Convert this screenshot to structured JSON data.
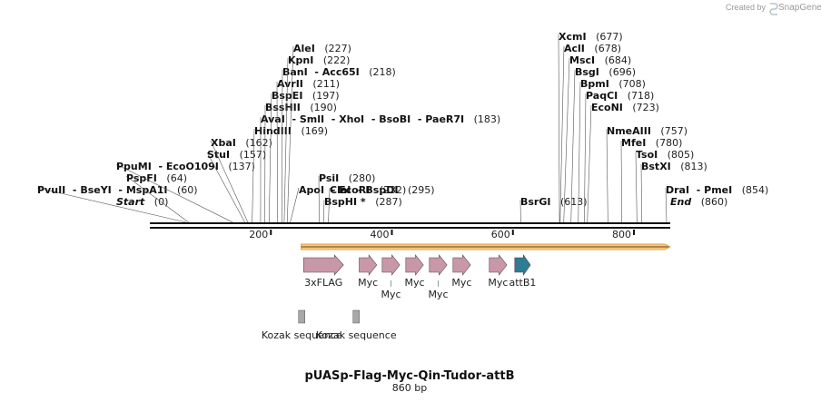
{
  "credit": {
    "prefix": "Created by",
    "brand": "SnapGene",
    "icon": "snapgene-logo-icon"
  },
  "plasmid": {
    "name": "pUASp-Flag-Myc-Qin-Tudor-attB",
    "length_text": "860 bp",
    "length": 860
  },
  "ruler": {
    "ticks": [
      200,
      400,
      600,
      800
    ]
  },
  "sites": [
    {
      "bp": 0,
      "labels": [
        {
          "text": "Start",
          "italic": true
        }
      ],
      "pos": "(0)"
    },
    {
      "bp": 60,
      "labels": [
        {
          "text": "PvuII"
        },
        {
          "text": "BseYI"
        },
        {
          "text": "MspA1I"
        }
      ],
      "pos": "(60)"
    },
    {
      "bp": 64,
      "labels": [
        {
          "text": "PspFI"
        }
      ],
      "pos": "(64)"
    },
    {
      "bp": 137,
      "labels": [
        {
          "text": "PpuMI"
        },
        {
          "text": "EcoO109I"
        }
      ],
      "pos": "(137)"
    },
    {
      "bp": 157,
      "labels": [
        {
          "text": "StuI"
        }
      ],
      "pos": "(157)"
    },
    {
      "bp": 162,
      "labels": [
        {
          "text": "XbaI"
        }
      ],
      "pos": "(162)"
    },
    {
      "bp": 169,
      "labels": [
        {
          "text": "HindIII"
        }
      ],
      "pos": "(169)"
    },
    {
      "bp": 183,
      "labels": [
        {
          "text": "AvaI"
        },
        {
          "text": "SmlI"
        },
        {
          "text": "XhoI"
        },
        {
          "text": "BsoBI"
        },
        {
          "text": "PaeR7I"
        }
      ],
      "pos": "(183)"
    },
    {
      "bp": 190,
      "labels": [
        {
          "text": "BssHII"
        }
      ],
      "pos": "(190)"
    },
    {
      "bp": 197,
      "labels": [
        {
          "text": "BspEI"
        }
      ],
      "pos": "(197)"
    },
    {
      "bp": 211,
      "labels": [
        {
          "text": "AvrII"
        }
      ],
      "pos": "(211)"
    },
    {
      "bp": 218,
      "labels": [
        {
          "text": "BanI"
        },
        {
          "text": "Acc65I"
        }
      ],
      "pos": "(218)"
    },
    {
      "bp": 222,
      "labels": [
        {
          "text": "KpnI"
        }
      ],
      "pos": "(222)"
    },
    {
      "bp": 227,
      "labels": [
        {
          "text": "AleI"
        }
      ],
      "pos": "(227)"
    },
    {
      "bp": 232,
      "labels": [
        {
          "text": "ApoI"
        },
        {
          "text": "EcoRI"
        }
      ],
      "pos": "(232)"
    },
    {
      "bp": 280,
      "labels": [
        {
          "text": "PsiI"
        }
      ],
      "pos": "(280)"
    },
    {
      "bp": 287,
      "labels": [
        {
          "text": "BspHI *"
        }
      ],
      "pos": "(287)"
    },
    {
      "bp": 295,
      "labels": [
        {
          "text": "ClaI"
        },
        {
          "text": "BspDI"
        }
      ],
      "pos": "(295)"
    },
    {
      "bp": 613,
      "labels": [
        {
          "text": "BsrGI"
        }
      ],
      "pos": "(613)"
    },
    {
      "bp": 677,
      "labels": [
        {
          "text": "XcmI"
        }
      ],
      "pos": "(677)"
    },
    {
      "bp": 678,
      "labels": [
        {
          "text": "AclI"
        }
      ],
      "pos": "(678)"
    },
    {
      "bp": 684,
      "labels": [
        {
          "text": "MscI"
        }
      ],
      "pos": "(684)"
    },
    {
      "bp": 696,
      "labels": [
        {
          "text": "BsgI"
        }
      ],
      "pos": "(696)"
    },
    {
      "bp": 708,
      "labels": [
        {
          "text": "BpmI"
        }
      ],
      "pos": "(708)"
    },
    {
      "bp": 718,
      "labels": [
        {
          "text": "PaqCI"
        }
      ],
      "pos": "(718)"
    },
    {
      "bp": 723,
      "labels": [
        {
          "text": "EcoNI"
        }
      ],
      "pos": "(723)"
    },
    {
      "bp": 757,
      "labels": [
        {
          "text": "NmeAIII"
        }
      ],
      "pos": "(757)"
    },
    {
      "bp": 780,
      "labels": [
        {
          "text": "MfeI"
        }
      ],
      "pos": "(780)"
    },
    {
      "bp": 805,
      "labels": [
        {
          "text": "TsoI"
        }
      ],
      "pos": "(805)"
    },
    {
      "bp": 813,
      "labels": [
        {
          "text": "BstXI"
        }
      ],
      "pos": "(813)"
    },
    {
      "bp": 854,
      "labels": [
        {
          "text": "DraI"
        },
        {
          "text": "PmeI"
        }
      ],
      "pos": "(854)"
    },
    {
      "bp": 860,
      "labels": [
        {
          "text": "End",
          "italic": true
        }
      ],
      "pos": "(860)"
    }
  ],
  "orf": {
    "start": 250,
    "end": 860,
    "color": "#f4c97c"
  },
  "features": [
    {
      "name": "3xFLAG",
      "start": 254,
      "end": 320,
      "color": "#c898a8"
    },
    {
      "name": "Myc",
      "start": 346,
      "end": 375,
      "color": "#c898a8"
    },
    {
      "name": "Myc",
      "start": 384,
      "end": 413,
      "color": "#c898a8"
    },
    {
      "name": "Myc",
      "start": 423,
      "end": 452,
      "color": "#c898a8"
    },
    {
      "name": "Myc",
      "start": 462,
      "end": 491,
      "color": "#c898a8"
    },
    {
      "name": "Myc",
      "start": 501,
      "end": 530,
      "color": "#c898a8"
    },
    {
      "name": "Myc",
      "start": 561,
      "end": 590,
      "color": "#c898a8"
    },
    {
      "name": "attB1",
      "start": 603,
      "end": 629,
      "color": "#2e7b94"
    }
  ],
  "kozak": [
    {
      "name": "Kozak sequence",
      "bp": 251,
      "color": "#a8a8a8"
    },
    {
      "name": "Kozak sequence",
      "bp": 341,
      "color": "#a8a8a8"
    }
  ]
}
